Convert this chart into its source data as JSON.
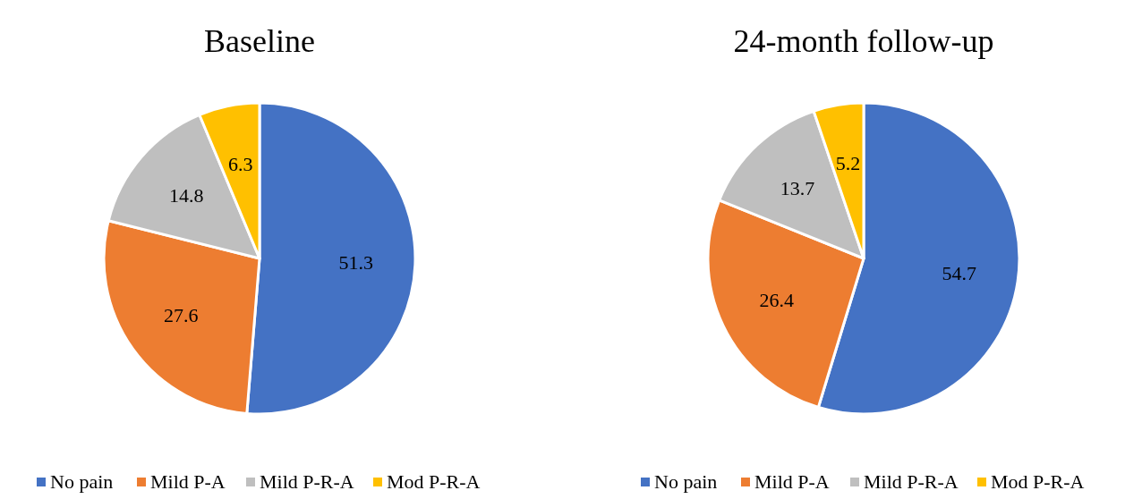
{
  "chart_data": [
    {
      "type": "pie",
      "title": "Baseline",
      "categories": [
        "No pain",
        "Mild P-A",
        "Mild P-R-A",
        "Mod P-R-A"
      ],
      "values": [
        51.3,
        27.6,
        14.8,
        6.3
      ],
      "colors": [
        "#4472c4",
        "#ed7d31",
        "#bfbfbf",
        "#ffc000"
      ],
      "data_labels": true,
      "legend": "bottom"
    },
    {
      "type": "pie",
      "title": "24-month follow-up",
      "categories": [
        "No pain",
        "Mild P-A",
        "Mild P-R-A",
        "Mod P-R-A"
      ],
      "values": [
        54.7,
        26.4,
        13.7,
        5.2
      ],
      "colors": [
        "#4472c4",
        "#ed7d31",
        "#bfbfbf",
        "#ffc000"
      ],
      "data_labels": true,
      "legend": "bottom"
    }
  ]
}
